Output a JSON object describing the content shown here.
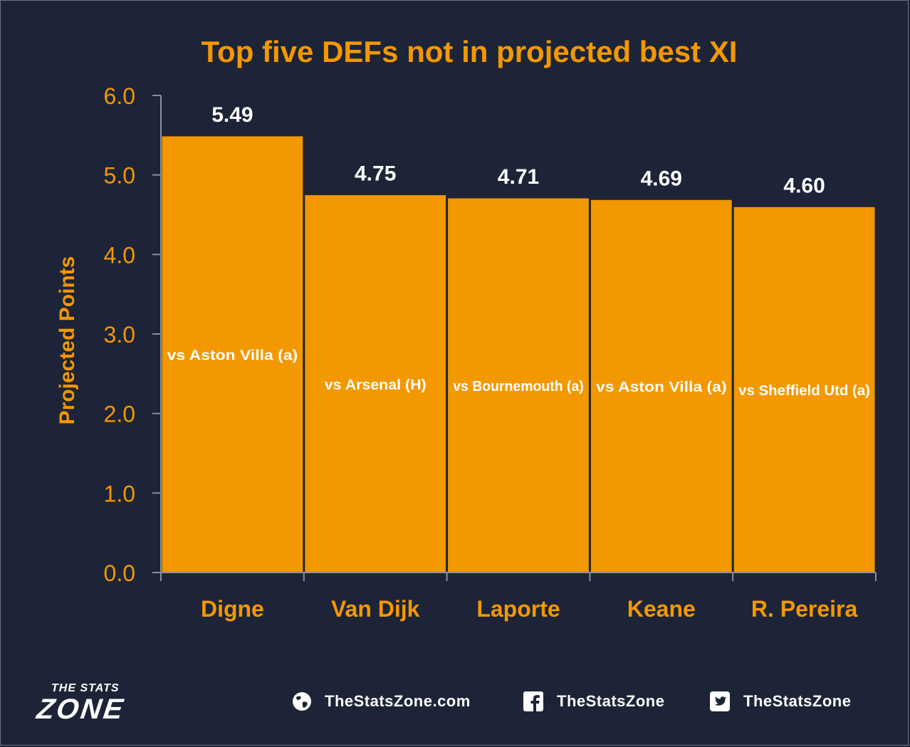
{
  "chart_data": {
    "type": "bar",
    "title": "Top five DEFs not in projected best XI",
    "ylabel": "Projected Points",
    "xlabel": "",
    "ylim": [
      0,
      6
    ],
    "yticks": [
      "0.0",
      "1.0",
      "2.0",
      "3.0",
      "4.0",
      "5.0",
      "6.0"
    ],
    "categories": [
      "Digne",
      "Van Dijk",
      "Laporte",
      "Keane",
      "R. Pereira"
    ],
    "values": [
      5.49,
      4.75,
      4.71,
      4.69,
      4.6
    ],
    "value_labels": [
      "5.49",
      "4.75",
      "4.71",
      "4.69",
      "4.60"
    ],
    "bar_annotations": [
      "vs Aston Villa (a)",
      "vs Arsenal (H)",
      "vs Bournemouth (a)",
      "vs Aston Villa (a)",
      "vs Sheffield Utd (a)"
    ],
    "grid": false,
    "legend": "none",
    "colors": {
      "bar": "#f39800",
      "bar_edge": "#1d2437",
      "accent": "#f39800",
      "background": "#1d2437",
      "axis": "#8a8f9c",
      "value_label": "#ffffff",
      "annotation": "#ffffff"
    }
  },
  "footer": {
    "logo_top": "THE STATS",
    "logo_main": "ZONE",
    "website": "TheStatsZone.com",
    "facebook": "TheStatsZone",
    "twitter": "TheStatsZone",
    "icons": [
      "globe-icon",
      "facebook-icon",
      "twitter-icon"
    ]
  }
}
